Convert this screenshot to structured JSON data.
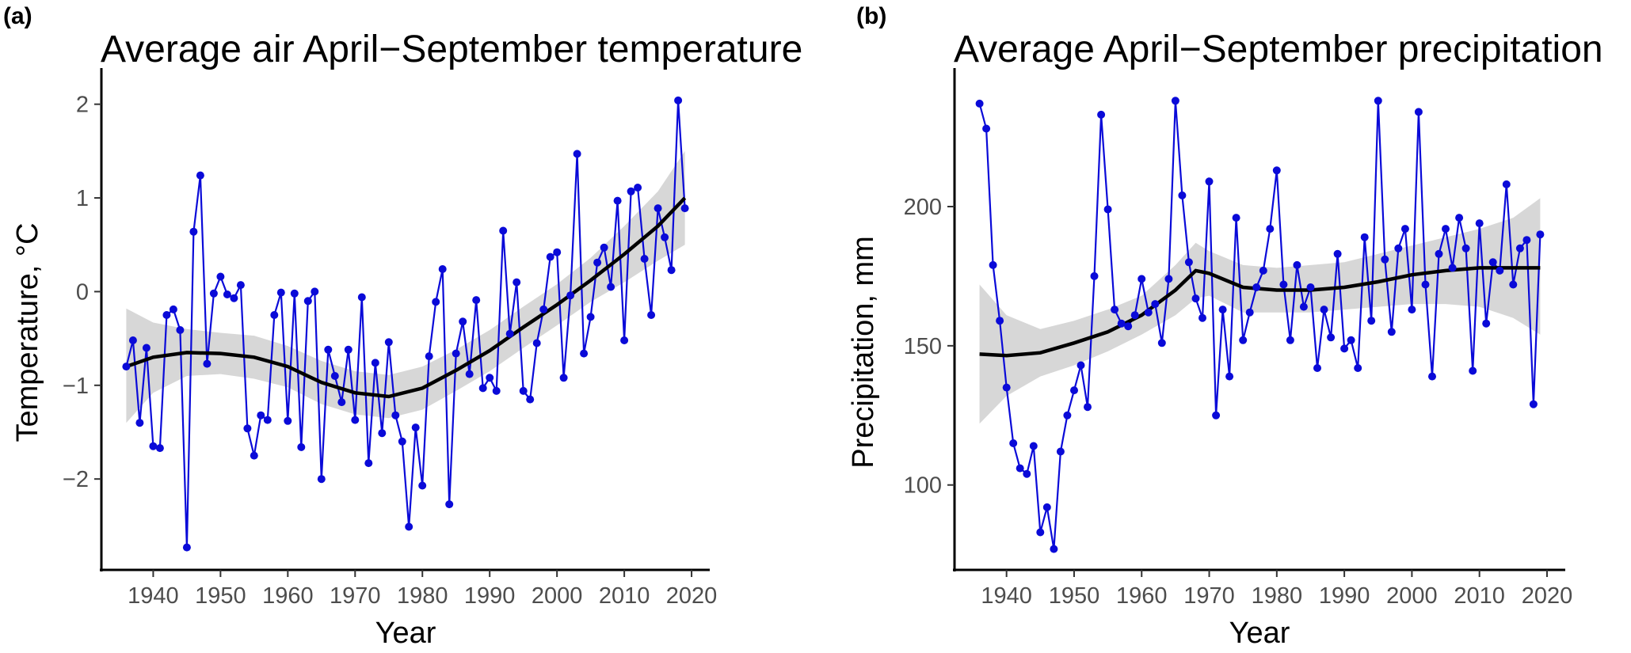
{
  "colors": {
    "series": "#0a0ad8",
    "smooth": "#000000",
    "ribbon": "#bdbdbd",
    "ticks": "#4d4d4d"
  },
  "chart_data": [
    {
      "panel_label": "(a)",
      "type": "line",
      "title": "Average air April−September temperature",
      "xlabel": "Year",
      "ylabel": "Temperature, °C",
      "xlim": [
        1932.3,
        2022.7
      ],
      "ylim": [
        -2.97,
        2.2
      ],
      "xticks": [
        1940,
        1950,
        1960,
        1970,
        1980,
        1990,
        2000,
        2010,
        2020
      ],
      "yticks": [
        -2,
        -1,
        0,
        1,
        2
      ],
      "ytick_labels": [
        "−2",
        "−1",
        "0",
        "1",
        "2"
      ],
      "grid": false,
      "legend": "none",
      "x": [
        1936,
        1937,
        1938,
        1939,
        1940,
        1941,
        1942,
        1943,
        1944,
        1945,
        1946,
        1947,
        1948,
        1949,
        1950,
        1951,
        1952,
        1953,
        1954,
        1955,
        1956,
        1957,
        1958,
        1959,
        1960,
        1961,
        1962,
        1963,
        1964,
        1965,
        1966,
        1967,
        1968,
        1969,
        1970,
        1971,
        1972,
        1973,
        1974,
        1975,
        1976,
        1977,
        1978,
        1979,
        1980,
        1981,
        1982,
        1983,
        1984,
        1985,
        1986,
        1987,
        1988,
        1989,
        1990,
        1991,
        1992,
        1993,
        1994,
        1995,
        1996,
        1997,
        1998,
        1999,
        2000,
        2001,
        2002,
        2003,
        2004,
        2005,
        2006,
        2007,
        2008,
        2009,
        2010,
        2011,
        2012,
        2013,
        2014,
        2015,
        2016,
        2017,
        2018,
        2019
      ],
      "y": [
        -0.8,
        -0.52,
        -1.4,
        -0.6,
        -1.65,
        -1.67,
        -0.25,
        -0.19,
        -0.41,
        -2.73,
        0.64,
        1.24,
        -0.77,
        -0.02,
        0.16,
        -0.03,
        -0.07,
        0.07,
        -1.46,
        -1.75,
        -1.32,
        -1.37,
        -0.25,
        -0.01,
        -1.38,
        -0.02,
        -1.66,
        -0.1,
        0.0,
        -2.0,
        -0.62,
        -0.9,
        -1.18,
        -0.62,
        -1.37,
        -0.06,
        -1.83,
        -0.76,
        -1.51,
        -0.54,
        -1.32,
        -1.6,
        -2.51,
        -1.45,
        -2.07,
        -0.69,
        -0.11,
        0.24,
        -2.27,
        -0.66,
        -0.32,
        -0.88,
        -0.09,
        -1.03,
        -0.92,
        -1.06,
        0.65,
        -0.45,
        0.1,
        -1.06,
        -1.15,
        -0.55,
        -0.19,
        0.37,
        0.42,
        -0.92,
        -0.04,
        1.47,
        -0.66,
        -0.27,
        0.31,
        0.47,
        0.05,
        0.97,
        -0.52,
        1.07,
        1.11,
        0.35,
        -0.25,
        0.89,
        0.58,
        0.23,
        2.04,
        0.89
      ],
      "smooth": {
        "x": [
          1936,
          1940,
          1945,
          1950,
          1955,
          1960,
          1965,
          1970,
          1975,
          1980,
          1985,
          1990,
          1995,
          2000,
          2005,
          2010,
          2015,
          2019
        ],
        "y": [
          -0.8,
          -0.7,
          -0.65,
          -0.66,
          -0.7,
          -0.8,
          -0.97,
          -1.08,
          -1.12,
          -1.03,
          -0.84,
          -0.63,
          -0.38,
          -0.14,
          0.12,
          0.4,
          0.7,
          1.0
        ],
        "lower": [
          -1.4,
          -1.08,
          -0.9,
          -0.88,
          -0.93,
          -1.02,
          -1.2,
          -1.31,
          -1.35,
          -1.26,
          -1.06,
          -0.85,
          -0.6,
          -0.36,
          -0.11,
          0.1,
          0.33,
          0.5
        ],
        "upper": [
          -0.18,
          -0.33,
          -0.4,
          -0.44,
          -0.47,
          -0.58,
          -0.74,
          -0.85,
          -0.89,
          -0.8,
          -0.62,
          -0.41,
          -0.16,
          0.08,
          0.36,
          0.7,
          1.07,
          1.5
        ]
      }
    },
    {
      "panel_label": "(b)",
      "type": "line",
      "title": "Average April−September precipitation",
      "xlabel": "Year",
      "ylabel": "Precipitation, mm",
      "xlim": [
        1932.3,
        2022.7
      ],
      "ylim": [
        69.5,
        243.5
      ],
      "xticks": [
        1940,
        1950,
        1960,
        1970,
        1980,
        1990,
        2000,
        2010,
        2020
      ],
      "yticks": [
        100,
        150,
        200
      ],
      "ytick_labels": [
        "100",
        "150",
        "200"
      ],
      "grid": false,
      "legend": "none",
      "x": [
        1936,
        1937,
        1938,
        1939,
        1940,
        1941,
        1942,
        1943,
        1944,
        1945,
        1946,
        1947,
        1948,
        1949,
        1950,
        1951,
        1952,
        1953,
        1954,
        1955,
        1956,
        1957,
        1958,
        1959,
        1960,
        1961,
        1962,
        1963,
        1964,
        1965,
        1966,
        1967,
        1968,
        1969,
        1970,
        1971,
        1972,
        1973,
        1974,
        1975,
        1976,
        1977,
        1978,
        1979,
        1980,
        1981,
        1982,
        1983,
        1984,
        1985,
        1986,
        1987,
        1988,
        1989,
        1990,
        1991,
        1992,
        1993,
        1994,
        1995,
        1996,
        1997,
        1998,
        1999,
        2000,
        2001,
        2002,
        2003,
        2004,
        2005,
        2006,
        2007,
        2008,
        2009,
        2010,
        2011,
        2012,
        2013,
        2014,
        2015,
        2016,
        2017,
        2018,
        2019
      ],
      "y": [
        237,
        228,
        179,
        159,
        135,
        115,
        106,
        104,
        114,
        83,
        92,
        77,
        112,
        125,
        134,
        143,
        128,
        175,
        233,
        199,
        163,
        158,
        157,
        161,
        174,
        162,
        165,
        151,
        174,
        238,
        204,
        180,
        167,
        160,
        209,
        125,
        163,
        139,
        196,
        152,
        162,
        171,
        177,
        192,
        213,
        172,
        152,
        179,
        164,
        171,
        142,
        163,
        153,
        183,
        149,
        152,
        142,
        189,
        159,
        238,
        181,
        155,
        185,
        192,
        163,
        234,
        172,
        139,
        183,
        192,
        178,
        196,
        185,
        141,
        194,
        158,
        180,
        177,
        208,
        172,
        185,
        188,
        129,
        190
      ],
      "smooth": {
        "x": [
          1936,
          1940,
          1945,
          1950,
          1955,
          1960,
          1965,
          1968,
          1970,
          1975,
          1980,
          1985,
          1990,
          1995,
          2000,
          2005,
          2010,
          2015,
          2019
        ],
        "y": [
          147,
          146.5,
          147.5,
          151,
          155,
          161,
          170,
          177,
          176,
          171,
          170,
          170,
          171,
          173,
          175.5,
          177,
          178,
          178,
          178
        ],
        "lower": [
          122,
          132,
          139,
          143,
          148,
          154,
          161,
          167,
          168,
          162,
          162,
          162,
          163,
          164,
          165,
          165,
          164,
          160,
          154
        ],
        "upper": [
          172,
          161,
          156,
          159,
          163,
          168,
          179,
          187,
          184,
          179,
          178,
          179,
          180,
          183,
          186,
          189,
          192,
          196,
          203
        ]
      }
    }
  ]
}
